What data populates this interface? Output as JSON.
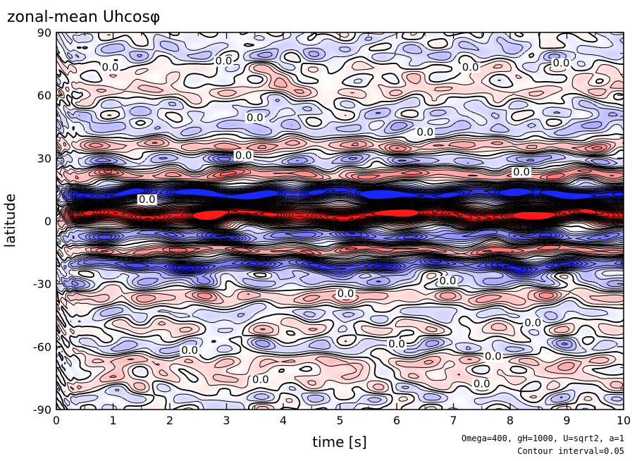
{
  "chart_data": {
    "type": "heatmap",
    "title": "zonal-mean Uhcosφ",
    "xlabel": "time [s]",
    "ylabel": "latitude",
    "xlim": [
      0,
      10
    ],
    "ylim": [
      -90,
      90
    ],
    "xticks": [
      0,
      1,
      2,
      3,
      4,
      5,
      6,
      7,
      8,
      9,
      10
    ],
    "yticks": [
      -90,
      -60,
      -30,
      0,
      30,
      60,
      90
    ],
    "notes": [
      "Omega=400, gH=1000, U=sqrt2, a=1",
      "Contour interval=0.05"
    ],
    "colors": {
      "positive": "#ff2020",
      "negative": "#2030ff",
      "zero": "#ffffff"
    },
    "contour_interval": 0.05,
    "contour_label_text": "0.0",
    "contour_labels": [
      {
        "t": 0.95,
        "lat": 72
      },
      {
        "t": 2.95,
        "lat": 75
      },
      {
        "t": 7.3,
        "lat": 72
      },
      {
        "t": 8.9,
        "lat": 74
      },
      {
        "t": 3.5,
        "lat": 48
      },
      {
        "t": 6.5,
        "lat": 41
      },
      {
        "t": 3.3,
        "lat": 30
      },
      {
        "t": 8.2,
        "lat": 22
      },
      {
        "t": 1.6,
        "lat": 9
      },
      {
        "t": 6.9,
        "lat": -30
      },
      {
        "t": 5.1,
        "lat": -36
      },
      {
        "t": 8.4,
        "lat": -50
      },
      {
        "t": 2.35,
        "lat": -63
      },
      {
        "t": 6.0,
        "lat": -60
      },
      {
        "t": 7.7,
        "lat": -66
      },
      {
        "t": 3.6,
        "lat": -77
      },
      {
        "t": 7.5,
        "lat": -79
      }
    ],
    "latitude_bands": [
      {
        "lat": 86,
        "width": 3,
        "amp": -0.03
      },
      {
        "lat": 80,
        "width": 4,
        "amp": -0.08
      },
      {
        "lat": 72,
        "width": 4,
        "amp": 0.03
      },
      {
        "lat": 62,
        "width": 3,
        "amp": 0.08
      },
      {
        "lat": 53,
        "width": 4,
        "amp": -0.06
      },
      {
        "lat": 44,
        "width": 4,
        "amp": -0.1
      },
      {
        "lat": 36,
        "width": 3,
        "amp": 0.16
      },
      {
        "lat": 29,
        "width": 3,
        "amp": -0.14
      },
      {
        "lat": 22,
        "width": 3,
        "amp": 0.22
      },
      {
        "lat": 13,
        "width": 3.5,
        "amp": -0.62
      },
      {
        "lat": 3,
        "width": 4,
        "amp": 0.78
      },
      {
        "lat": -7,
        "width": 3,
        "amp": -0.3
      },
      {
        "lat": -14,
        "width": 2.5,
        "amp": 0.26
      },
      {
        "lat": -21,
        "width": 3,
        "amp": -0.38
      },
      {
        "lat": -29,
        "width": 4,
        "amp": -0.12
      },
      {
        "lat": -36,
        "width": 4,
        "amp": 0.14
      },
      {
        "lat": -44,
        "width": 4,
        "amp": -0.07
      },
      {
        "lat": -51,
        "width": 4,
        "amp": 0.05
      },
      {
        "lat": -60,
        "width": 4,
        "amp": -0.08
      },
      {
        "lat": -67,
        "width": 3,
        "amp": 0.1
      },
      {
        "lat": -75,
        "width": 4,
        "amp": 0.06
      },
      {
        "lat": -85,
        "width": 3,
        "amp": -0.05
      }
    ]
  }
}
